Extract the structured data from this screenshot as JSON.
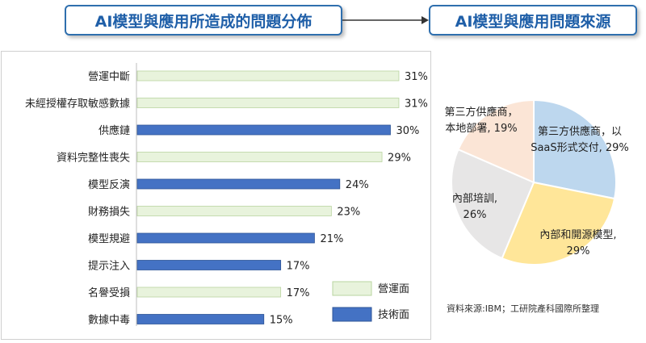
{
  "titles": {
    "left": "AI模型與應用所造成的問題分佈",
    "right": "AI模型與應用問題來源"
  },
  "colors": {
    "operational": "#e8f3dc",
    "operational_border": "#b9d4a0",
    "technical": "#4472c4",
    "technical_border": "#2f5597",
    "pie": [
      "#bdd7ee",
      "#ffe699",
      "#e7e6e6",
      "#fbe5d6"
    ]
  },
  "chart_data": [
    {
      "type": "bar",
      "orientation": "horizontal",
      "categories": [
        "營運中斷",
        "未經授權存取敏感數據",
        "供應鏈",
        "資料完整性喪失",
        "模型反演",
        "財務損失",
        "模型規避",
        "提示注入",
        "名譽受損",
        "數據中毒"
      ],
      "values": [
        31,
        31,
        30,
        29,
        24,
        23,
        21,
        17,
        17,
        15
      ],
      "value_labels": [
        "31%",
        "31%",
        "30%",
        "29%",
        "24%",
        "23%",
        "21%",
        "17%",
        "17%",
        "15%"
      ],
      "series_type": [
        "營運面",
        "營運面",
        "技術面",
        "營運面",
        "技術面",
        "營運面",
        "技術面",
        "技術面",
        "營運面",
        "技術面"
      ],
      "legend": [
        "營運面",
        "技術面"
      ],
      "legend_position": "bottom-right",
      "xlim": [
        0,
        35
      ]
    },
    {
      "type": "pie",
      "slices": [
        {
          "label_lines": [
            "第三方供應商，以",
            "SaaS形式交付, 29%"
          ],
          "value": 29
        },
        {
          "label_lines": [
            "內部和開源模型,",
            "29%"
          ],
          "value": 29
        },
        {
          "label_lines": [
            "內部培訓,",
            "26%"
          ],
          "value": 26
        },
        {
          "label_lines": [
            "第三方供應商，",
            "本地部署, 19%"
          ],
          "value": 19
        }
      ]
    }
  ],
  "source_note": "資料來源:IBM；工研院產科國際所整理"
}
